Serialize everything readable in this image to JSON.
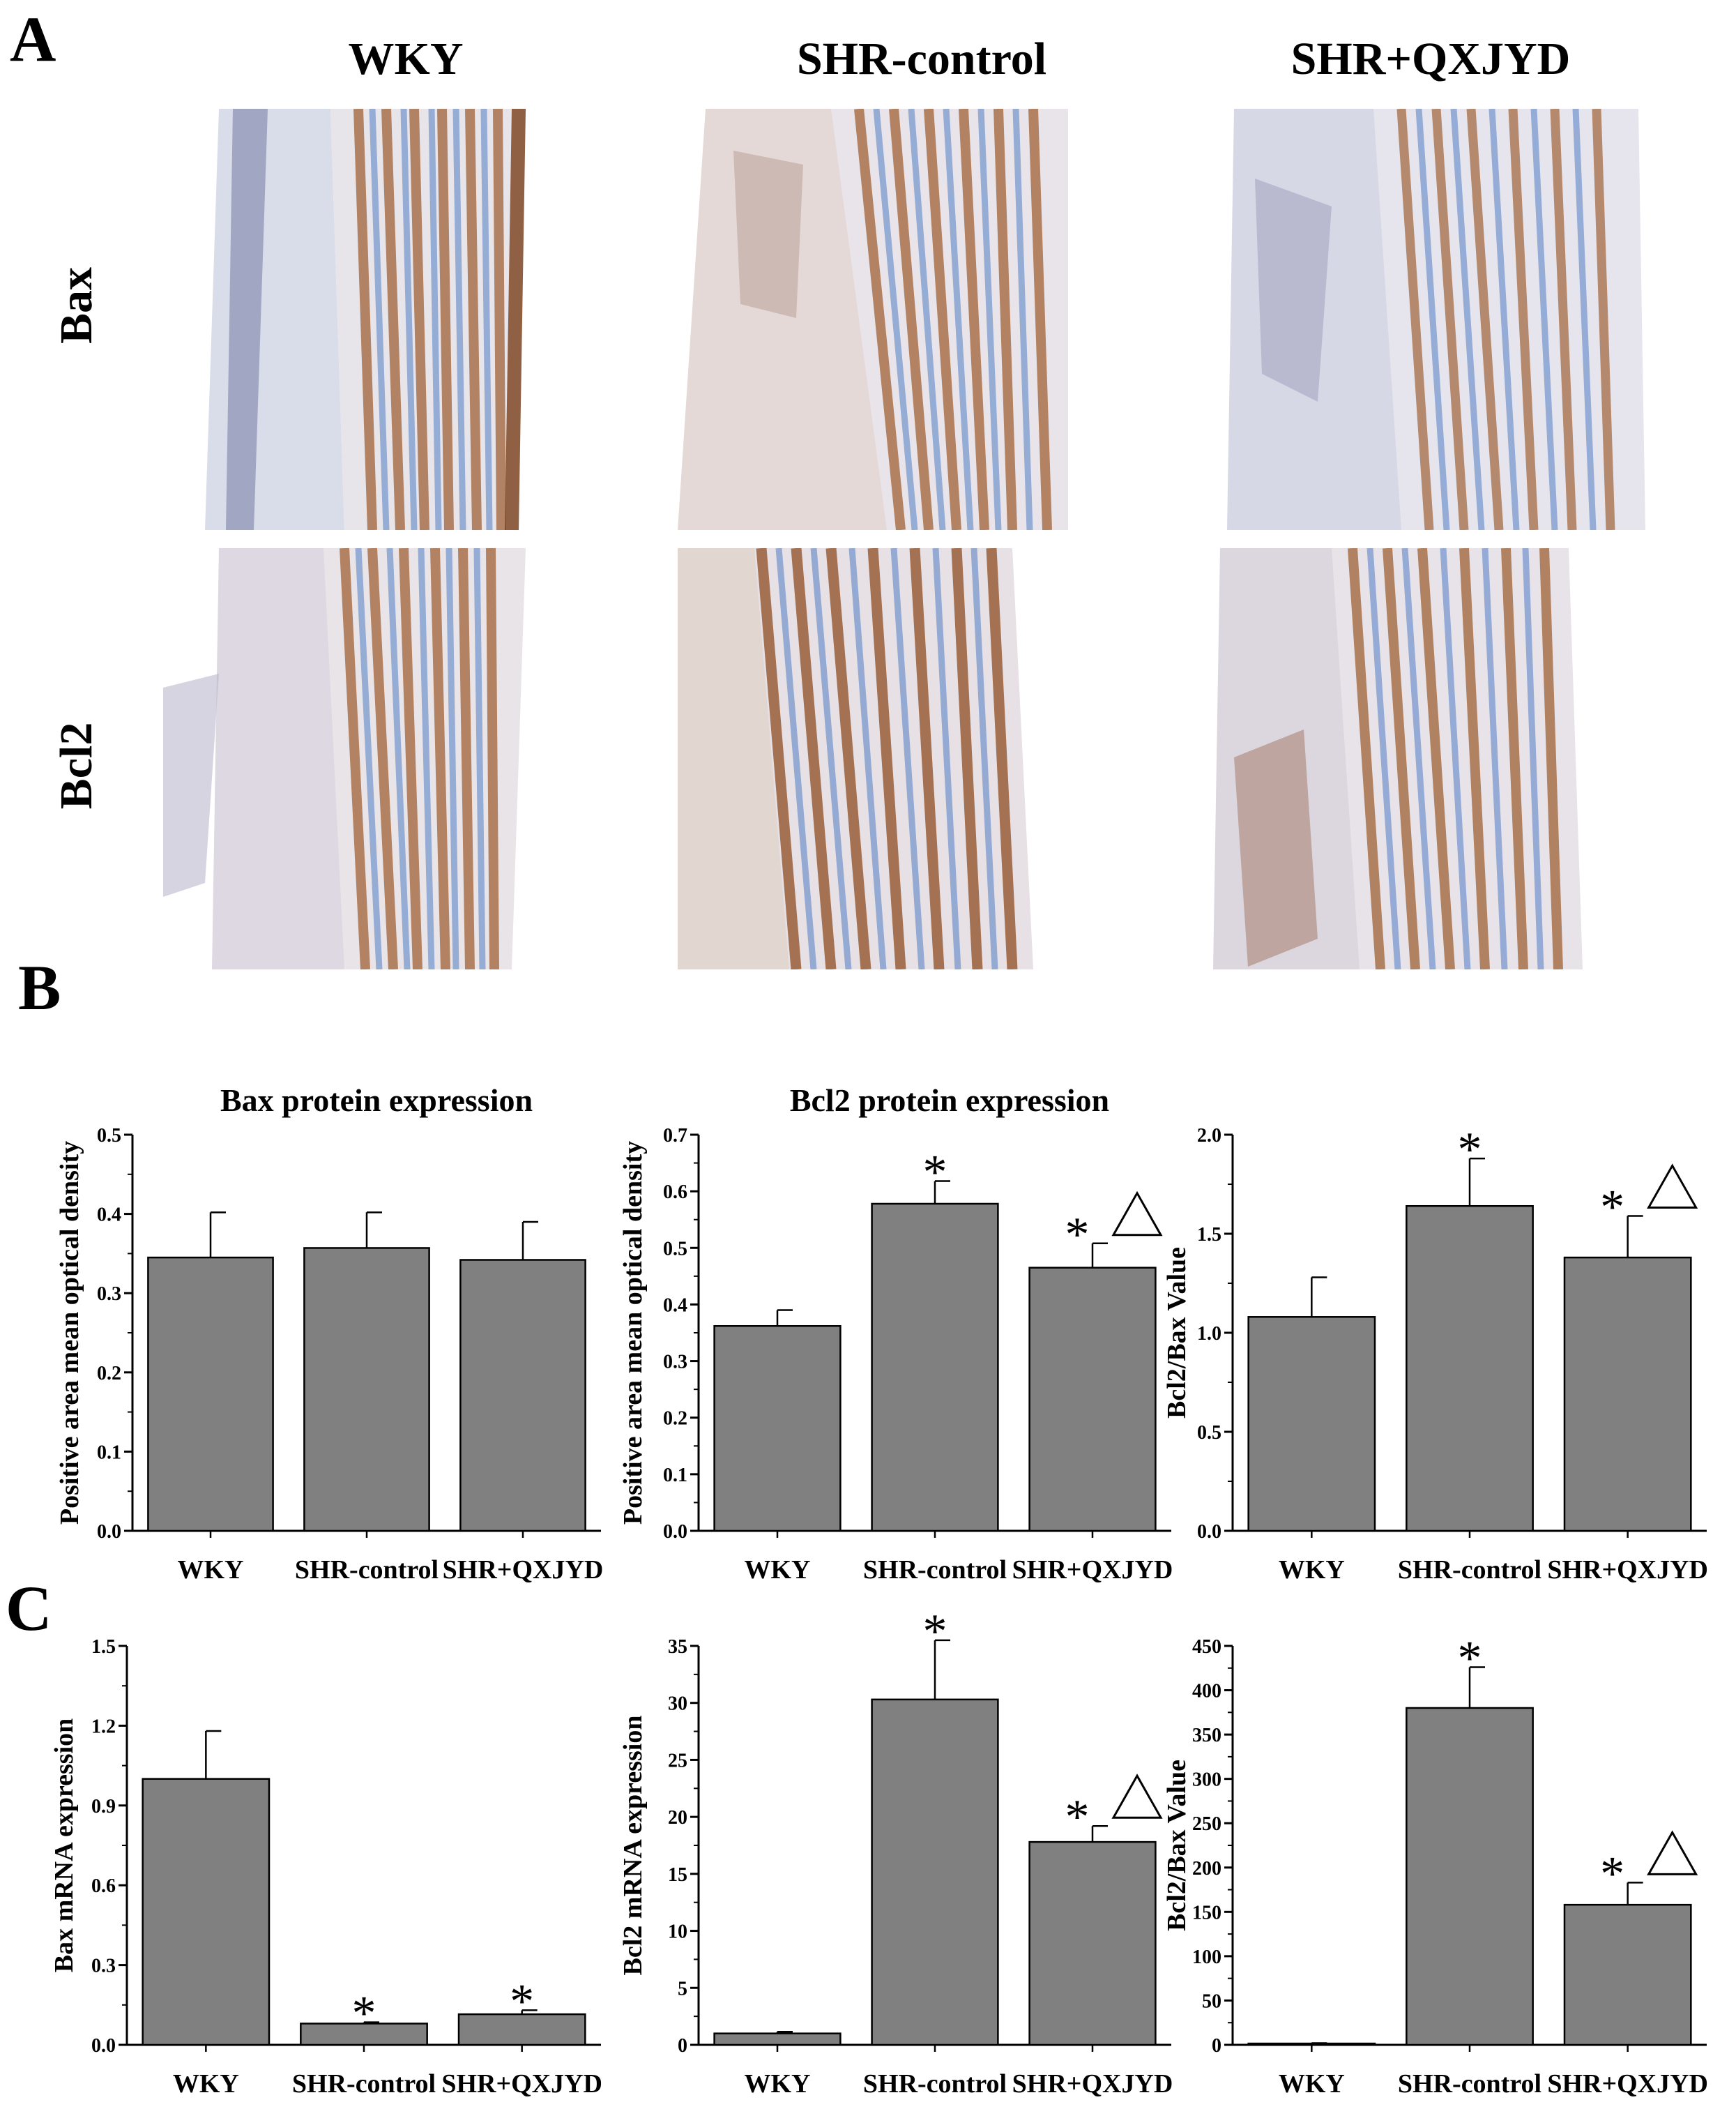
{
  "panel_labels": {
    "a": "A",
    "b": "B",
    "c": "C"
  },
  "histology": {
    "columns": [
      "WKY",
      "SHR-control",
      "SHR+QXJYD"
    ],
    "rows": [
      "Bax",
      "Bcl2"
    ]
  },
  "colors": {
    "bar": "#808080",
    "stain_brown": "#9b5a2a",
    "stain_blue": "#5f87c8",
    "background": "#ffffff"
  },
  "chart_data": [
    {
      "type": "bar",
      "panel": "B",
      "title": "Bax protein expression",
      "ylabel": "Positive area mean optical density",
      "categories": [
        "WKY",
        "SHR-control",
        "SHR+QXJYD"
      ],
      "values": [
        0.345,
        0.357,
        0.342
      ],
      "errors": [
        0.057,
        0.045,
        0.048
      ],
      "annotations": [
        "",
        "",
        ""
      ],
      "ylim": [
        0,
        0.5
      ],
      "yticks": [
        "0.0",
        "0.1",
        "0.2",
        "0.3",
        "0.4",
        "0.5"
      ],
      "ytick_values": [
        0,
        0.1,
        0.2,
        0.3,
        0.4,
        0.5
      ]
    },
    {
      "type": "bar",
      "panel": "B",
      "title": "Bcl2 protein expression",
      "ylabel": "Positive area mean optical density",
      "categories": [
        "WKY",
        "SHR-control",
        "SHR+QXJYD"
      ],
      "values": [
        0.362,
        0.578,
        0.465
      ],
      "errors": [
        0.028,
        0.04,
        0.043
      ],
      "annotations": [
        "",
        "*",
        "*△"
      ],
      "ylim": [
        0,
        0.7
      ],
      "yticks": [
        "0.0",
        "0.1",
        "0.2",
        "0.3",
        "0.4",
        "0.5",
        "0.6",
        "0.7"
      ],
      "ytick_values": [
        0,
        0.1,
        0.2,
        0.3,
        0.4,
        0.5,
        0.6,
        0.7
      ]
    },
    {
      "type": "bar",
      "panel": "B",
      "title": "",
      "ylabel": "Bcl2/Bax Value",
      "categories": [
        "WKY",
        "SHR-control",
        "SHR+QXJYD"
      ],
      "values": [
        1.08,
        1.64,
        1.38
      ],
      "errors": [
        0.2,
        0.24,
        0.21
      ],
      "annotations": [
        "",
        "*",
        "*△"
      ],
      "ylim": [
        0,
        2.0
      ],
      "yticks": [
        "0.0",
        "0.5",
        "1.0",
        "1.5",
        "2.0"
      ],
      "ytick_values": [
        0,
        0.5,
        1.0,
        1.5,
        2.0
      ]
    },
    {
      "type": "bar",
      "panel": "C",
      "title": "",
      "ylabel": "Bax mRNA expression",
      "categories": [
        "WKY",
        "SHR-control",
        "SHR+QXJYD"
      ],
      "values": [
        1.0,
        0.08,
        0.115
      ],
      "errors": [
        0.18,
        0.005,
        0.015
      ],
      "annotations": [
        "",
        "*",
        "*"
      ],
      "ylim": [
        0,
        1.5
      ],
      "yticks": [
        "0.0",
        "0.3",
        "0.6",
        "0.9",
        "1.2",
        "1.5"
      ],
      "ytick_values": [
        0,
        0.3,
        0.6,
        0.9,
        1.2,
        1.5
      ]
    },
    {
      "type": "bar",
      "panel": "C",
      "title": "",
      "ylabel": "Bcl2 mRNA expression",
      "categories": [
        "WKY",
        "SHR-control",
        "SHR+QXJYD"
      ],
      "values": [
        1.0,
        30.3,
        17.8
      ],
      "errors": [
        0.15,
        5.2,
        1.4
      ],
      "annotations": [
        "",
        "*",
        "*△"
      ],
      "ylim": [
        0,
        35
      ],
      "yticks": [
        "0",
        "5",
        "10",
        "15",
        "20",
        "25",
        "30",
        "35"
      ],
      "ytick_values": [
        0,
        5,
        10,
        15,
        20,
        25,
        30,
        35
      ]
    },
    {
      "type": "bar",
      "panel": "C",
      "title": "",
      "ylabel": "Bcl2/Bax Value",
      "categories": [
        "WKY",
        "SHR-control",
        "SHR+QXJYD"
      ],
      "values": [
        1.5,
        380,
        158
      ],
      "errors": [
        0.5,
        46,
        25
      ],
      "annotations": [
        "",
        "*",
        "*△"
      ],
      "ylim": [
        0,
        450
      ],
      "yticks": [
        "0",
        "50",
        "100",
        "150",
        "200",
        "250",
        "300",
        "350",
        "400",
        "450"
      ],
      "ytick_values": [
        0,
        50,
        100,
        150,
        200,
        250,
        300,
        350,
        400,
        450
      ]
    }
  ]
}
